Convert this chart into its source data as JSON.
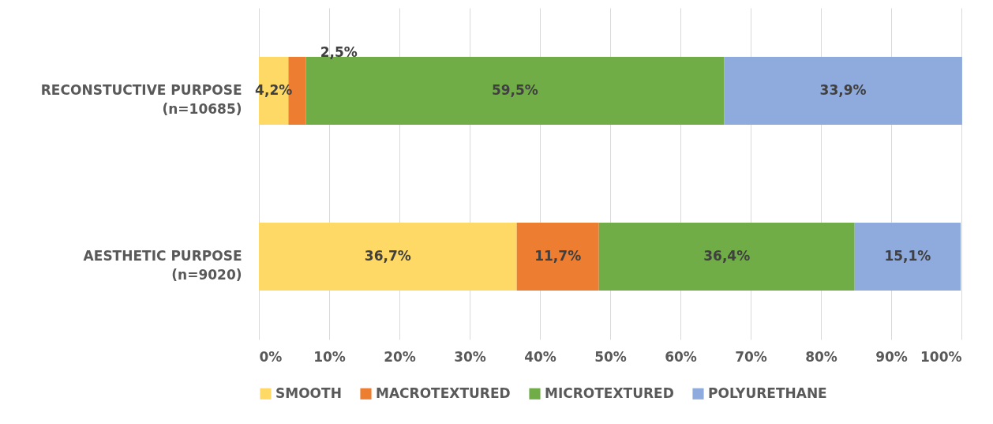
{
  "chart_data": {
    "type": "bar",
    "orientation": "horizontal",
    "stacked": true,
    "categories": [
      "RECONSTUCTIVE PURPOSE\n(n=10685)",
      "AESTHETIC PURPOSE\n(n=9020)"
    ],
    "series": [
      {
        "name": "SMOOTH",
        "color": "#ffd966",
        "values": [
          4.2,
          36.7
        ],
        "value_labels": [
          "4,2%",
          "36,7%"
        ]
      },
      {
        "name": "MACROTEXTURED",
        "color": "#ed7d31",
        "values": [
          2.5,
          11.7
        ],
        "value_labels": [
          "2,5%",
          "11,7%"
        ]
      },
      {
        "name": "MICROTEXTURED",
        "color": "#70ad47",
        "values": [
          59.5,
          36.4
        ],
        "value_labels": [
          "59,5%",
          "36,4%"
        ]
      },
      {
        "name": "POLYURETHANE",
        "color": "#8faadc",
        "values": [
          33.9,
          15.1
        ],
        "value_labels": [
          "33,9%",
          "15,1%"
        ]
      }
    ],
    "xlim": [
      0,
      100
    ],
    "xticks": [
      {
        "value": 0,
        "label": "0%"
      },
      {
        "value": 10,
        "label": "10%"
      },
      {
        "value": 20,
        "label": "20%"
      },
      {
        "value": 30,
        "label": "30%"
      },
      {
        "value": 40,
        "label": "40%"
      },
      {
        "value": 50,
        "label": "50%"
      },
      {
        "value": 60,
        "label": "60%"
      },
      {
        "value": 70,
        "label": "70%"
      },
      {
        "value": 80,
        "label": "80%"
      },
      {
        "value": 90,
        "label": "90%"
      },
      {
        "value": 100,
        "label": "100%"
      }
    ],
    "grid": "x",
    "legend": "bottom"
  }
}
